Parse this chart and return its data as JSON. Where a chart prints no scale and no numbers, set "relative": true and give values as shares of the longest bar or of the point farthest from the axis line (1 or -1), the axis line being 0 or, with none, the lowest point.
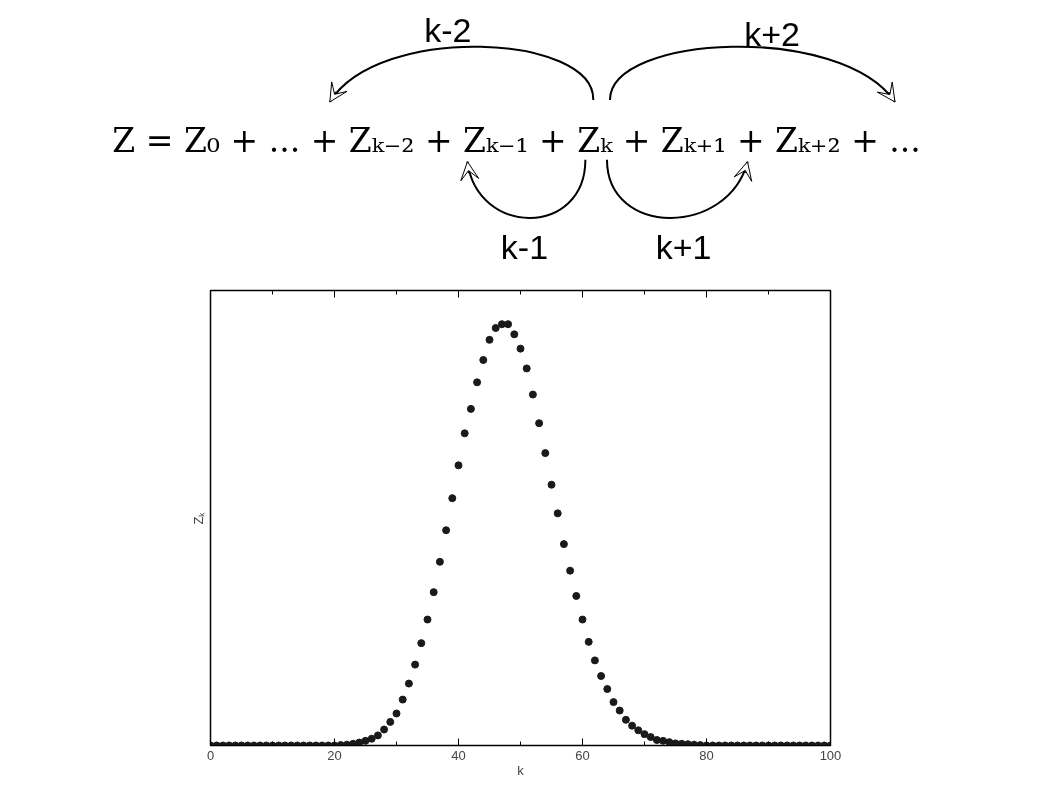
{
  "chart_data": {
    "type": "scatter",
    "relative": true,
    "xlabel": "k",
    "ylabel": "Zₖ",
    "annotations": [
      "Z = Z₀ + ... + Zₖ₋₂ + Zₖ₋₁ + Zₖ + Zₖ₊₁ + Zₖ₊₂ + ...",
      "k-2",
      "k+2",
      "k-1",
      "k+1"
    ],
    "x": [
      0,
      1,
      2,
      3,
      4,
      5,
      6,
      7,
      8,
      9,
      10,
      11,
      12,
      13,
      14,
      15,
      16,
      17,
      18,
      19,
      20,
      21,
      22,
      23,
      24,
      25,
      26,
      27,
      28,
      29,
      30,
      31,
      32,
      33,
      34,
      35,
      36,
      37,
      38,
      39,
      40,
      41,
      42,
      43,
      44,
      45,
      46,
      47,
      48,
      49,
      50,
      51,
      52,
      53,
      54,
      55,
      56,
      57,
      58,
      59,
      60,
      61,
      62,
      63,
      64,
      65,
      66,
      67,
      68,
      69,
      70,
      71,
      72,
      73,
      74,
      75,
      76,
      77,
      78,
      79,
      80,
      81,
      82,
      83,
      84,
      85,
      86,
      87,
      88,
      89,
      90,
      91,
      92,
      93,
      94,
      95,
      96,
      97,
      98,
      99,
      100
    ],
    "series": [
      {
        "color": "#1a1a1a",
        "values": [
          0,
          0,
          0,
          0,
          0,
          0,
          0,
          0,
          0,
          0,
          0,
          0,
          0,
          0,
          0,
          0,
          0,
          0,
          0,
          0,
          0,
          0.001,
          0.002,
          0.004,
          0.007,
          0.011,
          0.016,
          0.024,
          0.038,
          0.056,
          0.076,
          0.109,
          0.147,
          0.192,
          0.243,
          0.299,
          0.364,
          0.436,
          0.511,
          0.587,
          0.665,
          0.741,
          0.799,
          0.862,
          0.915,
          0.963,
          0.991,
          1,
          1,
          0.976,
          0.942,
          0.895,
          0.833,
          0.765,
          0.694,
          0.619,
          0.551,
          0.478,
          0.415,
          0.355,
          0.299,
          0.246,
          0.202,
          0.165,
          0.134,
          0.103,
          0.083,
          0.061,
          0.047,
          0.036,
          0.027,
          0.02,
          0.013,
          0.011,
          0.008,
          0.005,
          0.004,
          0.003,
          0.002,
          0.001,
          0,
          0,
          0,
          0,
          0,
          0,
          0,
          0,
          0,
          0,
          0,
          0,
          0,
          0,
          0,
          0,
          0,
          0,
          0,
          0,
          0
        ]
      }
    ],
    "xlim": [
      0,
      100
    ],
    "xticks": [
      0,
      20,
      40,
      60,
      80,
      100
    ],
    "marker": "circle",
    "grid": false
  }
}
